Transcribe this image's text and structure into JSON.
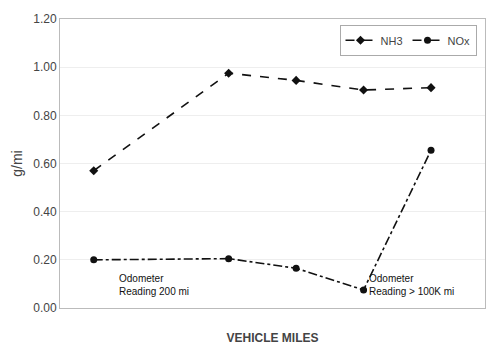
{
  "chart_data": {
    "type": "line",
    "x_label": "VEHICLE MILES",
    "y_label": "g/mi",
    "series": [
      {
        "name": "NH3",
        "color": "#111111",
        "marker": "diamond",
        "line_style": "dash",
        "x": [
          1,
          3,
          4,
          5,
          6
        ],
        "values": [
          0.57,
          0.975,
          0.945,
          0.905,
          0.915
        ]
      },
      {
        "name": "NOx",
        "color": "#111111",
        "marker": "circle",
        "line_style": "dashdot",
        "x": [
          1,
          3,
          4,
          5,
          6
        ],
        "values": [
          0.2,
          0.205,
          0.165,
          0.075,
          0.655
        ]
      }
    ],
    "xlim": [
      0.5,
      6.8
    ],
    "xticks": [],
    "ylim": [
      0.0,
      1.2
    ],
    "yticks": [
      {
        "value": 0.0,
        "label": "0.00"
      },
      {
        "value": 0.2,
        "label": "0.20"
      },
      {
        "value": 0.4,
        "label": "0.40"
      },
      {
        "value": 0.6,
        "label": "0.60"
      },
      {
        "value": 0.8,
        "label": "0.80"
      },
      {
        "value": 1.0,
        "label": "1.00"
      },
      {
        "value": 1.2,
        "label": "1.20"
      }
    ],
    "tick_labels": "y",
    "grid": true,
    "legend": "upper right",
    "annotations": [
      {
        "text": "Odometer\nReading 200 mi",
        "x": 1.35,
        "y": 0.155,
        "color": "#111111"
      },
      {
        "text": "Odometer\nReading > 100K mi",
        "x": 5.05,
        "y": 0.155,
        "color": "#111111"
      }
    ]
  }
}
